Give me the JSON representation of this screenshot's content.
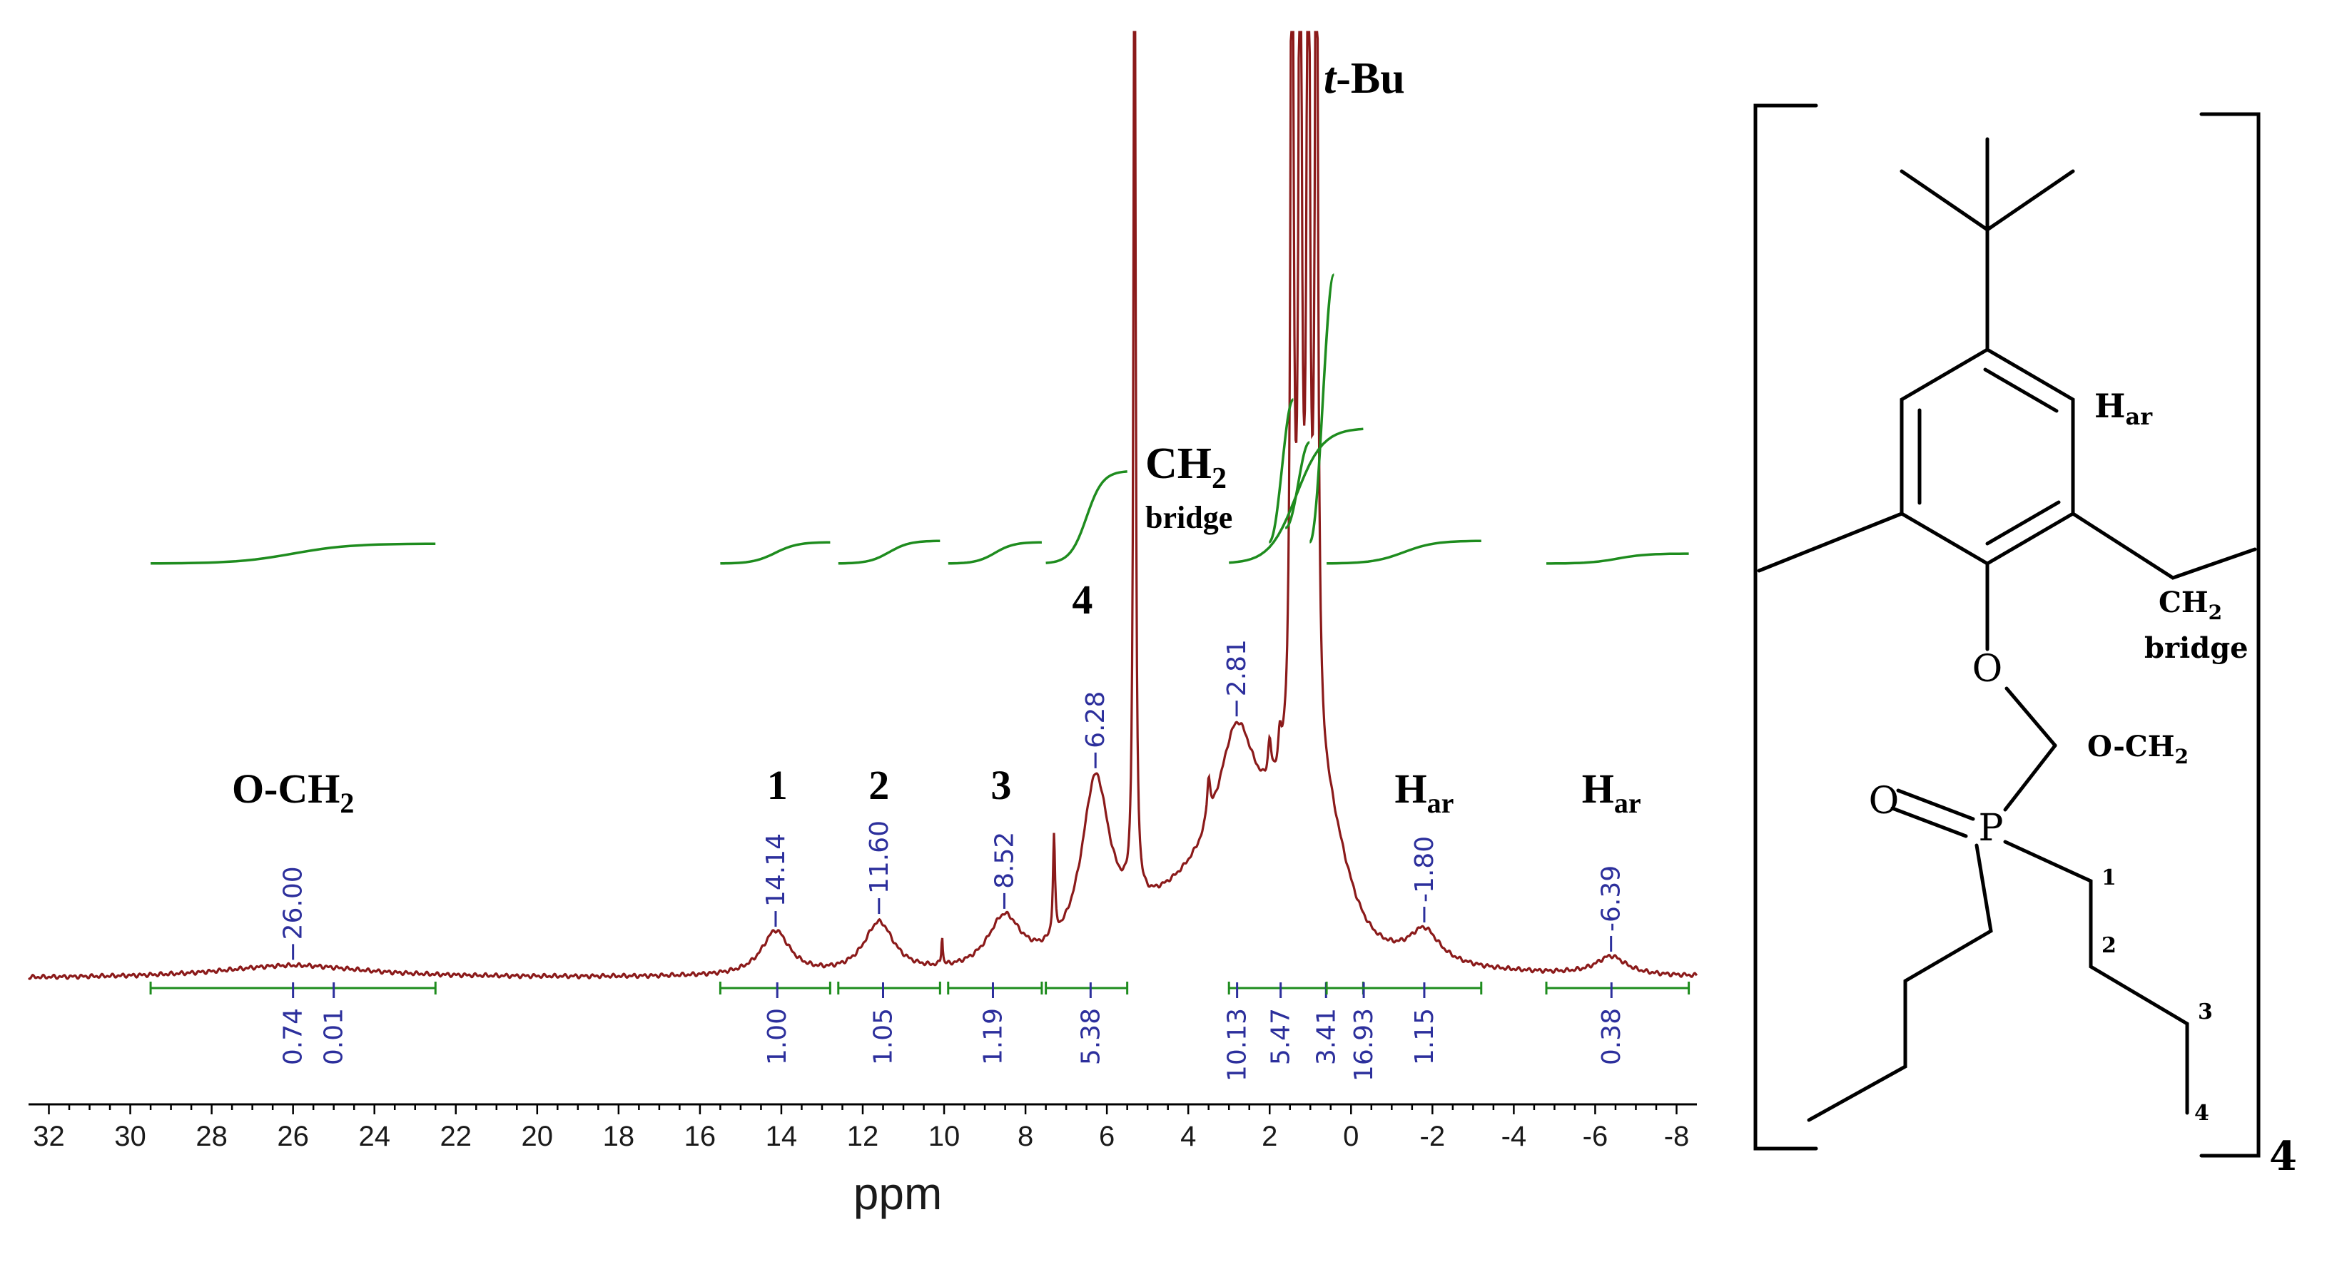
{
  "chart_data": {
    "type": "line",
    "title": "",
    "xlabel": "ppm",
    "ylabel": "",
    "xlim": [
      32.5,
      -8.5
    ],
    "x_reversed": true,
    "x_ticks": [
      32,
      30,
      28,
      26,
      24,
      22,
      20,
      18,
      16,
      14,
      12,
      10,
      8,
      6,
      4,
      2,
      0,
      -2,
      -4,
      -6,
      -8
    ],
    "grid": false,
    "colors": {
      "spectrum": "#8b1a1a",
      "integral": "#1e8c1e",
      "label": "#2c2f9c"
    },
    "peak_labels": [
      {
        "ppm": 26.0,
        "text": "26.00"
      },
      {
        "ppm": 14.14,
        "text": "14.14"
      },
      {
        "ppm": 11.6,
        "text": "11.60"
      },
      {
        "ppm": 8.52,
        "text": "8.52"
      },
      {
        "ppm": 6.28,
        "text": "6.28"
      },
      {
        "ppm": 2.81,
        "text": "2.81"
      },
      {
        "ppm": -1.8,
        "text": "-1.80"
      },
      {
        "ppm": -6.39,
        "text": "-6.39"
      }
    ],
    "integrals": [
      {
        "from": 29.5,
        "to": 22.5,
        "labels": [
          "0.74",
          "0.01"
        ],
        "label_ppm": [
          26.0,
          25.0
        ],
        "label_dx": [
          0,
          0
        ]
      },
      {
        "from": 15.5,
        "to": 12.8,
        "labels": [
          "1.00"
        ],
        "label_ppm": [
          14.1
        ],
        "label_dx": [
          0
        ]
      },
      {
        "from": 12.6,
        "to": 10.1,
        "labels": [
          "1.05"
        ],
        "label_ppm": [
          11.5
        ],
        "label_dx": [
          0
        ]
      },
      {
        "from": 9.9,
        "to": 7.6,
        "labels": [
          "1.19"
        ],
        "label_ppm": [
          8.8
        ],
        "label_dx": [
          0
        ]
      },
      {
        "from": 7.5,
        "to": 5.5,
        "labels": [
          "5.38"
        ],
        "label_ppm": [
          6.4
        ],
        "label_dx": [
          0
        ]
      },
      {
        "from": 3.0,
        "to": -0.3,
        "labels": [
          "10.13",
          "5.47",
          "3.41",
          "16.93"
        ],
        "label_ppm": [
          2.8,
          1.8,
          1.0,
          0.6
        ],
        "label_dx": [
          0,
          4,
          22,
          52
        ]
      },
      {
        "from": 0.6,
        "to": -3.2,
        "labels": [
          "1.15"
        ],
        "label_ppm": [
          -1.8
        ],
        "label_dx": [
          0
        ]
      },
      {
        "from": -4.8,
        "to": -8.3,
        "labels": [
          "0.38"
        ],
        "label_ppm": [
          -6.4
        ],
        "label_dx": [
          0
        ]
      }
    ],
    "assignments": [
      {
        "ppm": 26.0,
        "text": "O-CH",
        "sub": "2"
      },
      {
        "ppm": 14.1,
        "text": "1",
        "sub": ""
      },
      {
        "ppm": 11.6,
        "text": "2",
        "sub": ""
      },
      {
        "ppm": 8.6,
        "text": "3",
        "sub": ""
      },
      {
        "ppm": 6.6,
        "text": "4",
        "sub": ""
      },
      {
        "ppm": -1.8,
        "text": "H",
        "sub": "ar"
      },
      {
        "ppm": -6.4,
        "text": "H",
        "sub": "ar"
      }
    ],
    "annotations": {
      "tbu_prefix": "t",
      "tbu_rest": "-Bu",
      "ch2": "CH",
      "ch2_sub": "2",
      "bridge": "bridge"
    }
  },
  "structure": {
    "h_ar": "H",
    "h_ar_sub": "ar",
    "ch2": "CH",
    "ch2_sub": "2",
    "bridge": "bridge",
    "och2": "O-CH",
    "och2_sub": "2",
    "oxygen": "O",
    "phosphorus": "P",
    "ether_o": "O",
    "chain_numbers": [
      "1",
      "2",
      "3",
      "4"
    ],
    "multiplier": "4"
  }
}
